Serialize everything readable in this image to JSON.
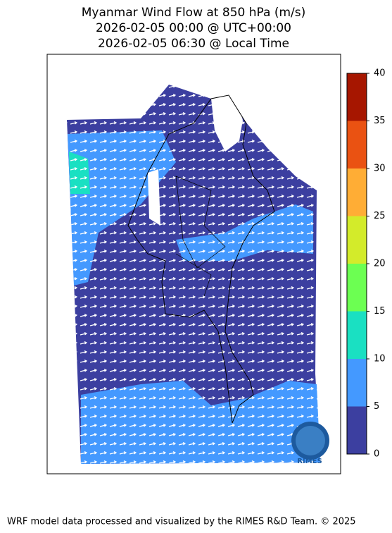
{
  "title": [
    "Myanmar Wind Flow at 850 hPa (m/s)",
    "2026-02-05 00:00 @ UTC+00:00",
    "2026-02-05 06:30 @ Local Time"
  ],
  "colorbar": {
    "ticks": [
      0,
      5,
      10,
      15,
      20,
      25,
      30,
      35,
      40
    ],
    "colors": [
      "#3c3fa0",
      "#4499ff",
      "#1ae0c2",
      "#6cff52",
      "#d3eb2a",
      "#ffad35",
      "#ea5212",
      "#a61600"
    ]
  },
  "logo": "RIMES",
  "footer": "WRF model data processed and visualized by the RIMES R&D Team. © 2025"
}
